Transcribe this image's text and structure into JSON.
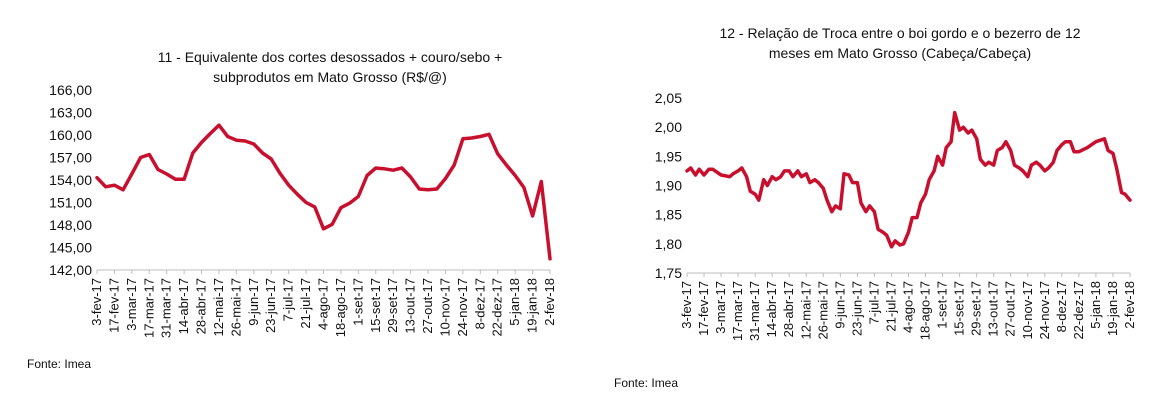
{
  "chart_data": [
    {
      "type": "line",
      "title_line1": "11 - Equivalente dos cortes desossados + couro/sebo +",
      "title_line2": "subprodutos em Mato Grosso (R$/@)",
      "y_ticks": [
        "166,00",
        "163,00",
        "160,00",
        "157,00",
        "154,00",
        "151,00",
        "148,00",
        "145,00",
        "142,00"
      ],
      "ylim": [
        142,
        166
      ],
      "x_ticks": [
        "3-fev-17",
        "17-fev-17",
        "3-mar-17",
        "17-mar-17",
        "31-mar-17",
        "14-abr-17",
        "28-abr-17",
        "12-mai-17",
        "26-mai-17",
        "9-jun-17",
        "23-jun-17",
        "7-jul-17",
        "21-jul-17",
        "4-ago-17",
        "18-ago-17",
        "1-set-17",
        "15-set-17",
        "29-set-17",
        "13-out-17",
        "27-out-17",
        "10-nov-17",
        "24-nov-17",
        "8-dez-17",
        "22-dez-17",
        "5-jan-18",
        "19-jan-18",
        "2-fev-18"
      ],
      "x_range": [
        "3-fev-17",
        "2-fev-18"
      ],
      "series": [
        {
          "color": "#c8102e",
          "points": [
            [
              "3-fev-17",
              154.3
            ],
            [
              "10-fev-17",
              153.1
            ],
            [
              "17-fev-17",
              153.3
            ],
            [
              "24-fev-17",
              152.7
            ],
            [
              "3-mar-17",
              154.8
            ],
            [
              "10-mar-17",
              157.0
            ],
            [
              "17-mar-17",
              157.4
            ],
            [
              "24-mar-17",
              155.4
            ],
            [
              "31-mar-17",
              154.8
            ],
            [
              "7-abr-17",
              154.1
            ],
            [
              "14-abr-17",
              154.1
            ],
            [
              "21-abr-17",
              157.6
            ],
            [
              "28-abr-17",
              159.0
            ],
            [
              "5-mai-17",
              160.2
            ],
            [
              "12-mai-17",
              161.3
            ],
            [
              "19-mai-17",
              159.8
            ],
            [
              "26-mai-17",
              159.3
            ],
            [
              "2-jun-17",
              159.2
            ],
            [
              "9-jun-17",
              158.8
            ],
            [
              "16-jun-17",
              157.6
            ],
            [
              "23-jun-17",
              156.8
            ],
            [
              "30-jun-17",
              154.9
            ],
            [
              "7-jul-17",
              153.3
            ],
            [
              "14-jul-17",
              152.1
            ],
            [
              "21-jul-17",
              151.0
            ],
            [
              "28-jul-17",
              150.4
            ],
            [
              "4-ago-17",
              147.5
            ],
            [
              "11-ago-17",
              148.1
            ],
            [
              "18-ago-17",
              150.3
            ],
            [
              "25-ago-17",
              150.9
            ],
            [
              "1-set-17",
              151.8
            ],
            [
              "8-set-17",
              154.6
            ],
            [
              "15-set-17",
              155.6
            ],
            [
              "22-set-17",
              155.5
            ],
            [
              "29-set-17",
              155.3
            ],
            [
              "6-out-17",
              155.6
            ],
            [
              "13-out-17",
              154.4
            ],
            [
              "20-out-17",
              152.8
            ],
            [
              "27-out-17",
              152.7
            ],
            [
              "3-nov-17",
              152.8
            ],
            [
              "10-nov-17",
              154.2
            ],
            [
              "17-nov-17",
              156.0
            ],
            [
              "24-nov-17",
              159.5
            ],
            [
              "1-dez-17",
              159.6
            ],
            [
              "8-dez-17",
              159.8
            ],
            [
              "15-dez-17",
              160.1
            ],
            [
              "22-dez-17",
              157.5
            ],
            [
              "29-dez-17",
              156.0
            ],
            [
              "5-jan-18",
              154.6
            ],
            [
              "12-jan-18",
              153.0
            ],
            [
              "19-jan-18",
              149.2
            ],
            [
              "26-jan-18",
              153.8
            ],
            [
              "2-fev-18",
              143.5
            ]
          ]
        }
      ],
      "source": "Fonte: Imea"
    },
    {
      "type": "line",
      "title_line1": "12 - Relação de Troca entre o boi gordo e o bezerro de 12",
      "title_line2": "meses em Mato Grosso (Cabeça/Cabeça)",
      "y_ticks": [
        "2,05",
        "2,00",
        "1,95",
        "1,90",
        "1,85",
        "1,80",
        "1,75"
      ],
      "ylim": [
        1.75,
        2.05
      ],
      "x_ticks": [
        "3-fev-17",
        "17-fev-17",
        "3-mar-17",
        "17-mar-17",
        "31-mar-17",
        "14-abr-17",
        "28-abr-17",
        "12-mai-17",
        "26-mai-17",
        "9-jun-17",
        "23-jun-17",
        "7-jul-17",
        "21-jul-17",
        "4-ago-17",
        "18-ago-17",
        "1-set-17",
        "15-set-17",
        "29-set-17",
        "13-out-17",
        "27-out-17",
        "10-nov-17",
        "24-nov-17",
        "8-dez-17",
        "22-dez-17",
        "5-jan-18",
        "19-jan-18",
        "2-fev-18"
      ],
      "x_range": [
        "3-fev-17",
        "2-fev-18"
      ],
      "series": [
        {
          "color": "#c8102e",
          "points": [
            [
              "3-fev-17",
              1.925
            ],
            [
              "6-fev-17",
              1.93
            ],
            [
              "10-fev-17",
              1.918
            ],
            [
              "13-fev-17",
              1.928
            ],
            [
              "17-fev-17",
              1.918
            ],
            [
              "21-fev-17",
              1.928
            ],
            [
              "24-fev-17",
              1.928
            ],
            [
              "3-mar-17",
              1.918
            ],
            [
              "10-mar-17",
              1.915
            ],
            [
              "13-mar-17",
              1.92
            ],
            [
              "17-mar-17",
              1.925
            ],
            [
              "20-mar-17",
              1.93
            ],
            [
              "24-mar-17",
              1.915
            ],
            [
              "27-mar-17",
              1.89
            ],
            [
              "31-mar-17",
              1.885
            ],
            [
              "3-abr-17",
              1.875
            ],
            [
              "7-abr-17",
              1.91
            ],
            [
              "10-abr-17",
              1.9
            ],
            [
              "14-abr-17",
              1.915
            ],
            [
              "17-abr-17",
              1.91
            ],
            [
              "21-abr-17",
              1.915
            ],
            [
              "24-abr-17",
              1.925
            ],
            [
              "28-abr-17",
              1.925
            ],
            [
              "1-mai-17",
              1.915
            ],
            [
              "5-mai-17",
              1.925
            ],
            [
              "8-mai-17",
              1.915
            ],
            [
              "12-mai-17",
              1.92
            ],
            [
              "15-mai-17",
              1.905
            ],
            [
              "19-mai-17",
              1.91
            ],
            [
              "22-mai-17",
              1.905
            ],
            [
              "26-mai-17",
              1.895
            ],
            [
              "29-mai-17",
              1.875
            ],
            [
              "2-jun-17",
              1.855
            ],
            [
              "5-jun-17",
              1.865
            ],
            [
              "9-jun-17",
              1.86
            ],
            [
              "12-jun-17",
              1.92
            ],
            [
              "16-jun-17",
              1.918
            ],
            [
              "19-jun-17",
              1.905
            ],
            [
              "23-jun-17",
              1.905
            ],
            [
              "26-jun-17",
              1.87
            ],
            [
              "30-jun-17",
              1.855
            ],
            [
              "3-jul-17",
              1.865
            ],
            [
              "7-jul-17",
              1.855
            ],
            [
              "10-jul-17",
              1.825
            ],
            [
              "14-jul-17",
              1.82
            ],
            [
              "17-jul-17",
              1.815
            ],
            [
              "21-jul-17",
              1.795
            ],
            [
              "24-jul-17",
              1.805
            ],
            [
              "28-jul-17",
              1.798
            ],
            [
              "31-jul-17",
              1.8
            ],
            [
              "4-ago-17",
              1.82
            ],
            [
              "7-ago-17",
              1.845
            ],
            [
              "11-ago-17",
              1.845
            ],
            [
              "14-ago-17",
              1.87
            ],
            [
              "18-ago-17",
              1.885
            ],
            [
              "21-ago-17",
              1.91
            ],
            [
              "25-ago-17",
              1.925
            ],
            [
              "28-ago-17",
              1.95
            ],
            [
              "1-set-17",
              1.935
            ],
            [
              "4-set-17",
              1.965
            ],
            [
              "8-set-17",
              1.975
            ],
            [
              "11-set-17",
              2.025
            ],
            [
              "15-set-17",
              1.995
            ],
            [
              "18-set-17",
              2.0
            ],
            [
              "22-set-17",
              1.99
            ],
            [
              "25-set-17",
              1.995
            ],
            [
              "29-set-17",
              1.98
            ],
            [
              "2-out-17",
              1.945
            ],
            [
              "6-out-17",
              1.935
            ],
            [
              "9-out-17",
              1.94
            ],
            [
              "13-out-17",
              1.935
            ],
            [
              "16-out-17",
              1.96
            ],
            [
              "20-out-17",
              1.965
            ],
            [
              "23-out-17",
              1.975
            ],
            [
              "27-out-17",
              1.96
            ],
            [
              "30-out-17",
              1.935
            ],
            [
              "3-nov-17",
              1.93
            ],
            [
              "6-nov-17",
              1.925
            ],
            [
              "10-nov-17",
              1.915
            ],
            [
              "13-nov-17",
              1.935
            ],
            [
              "17-nov-17",
              1.94
            ],
            [
              "20-nov-17",
              1.935
            ],
            [
              "24-nov-17",
              1.925
            ],
            [
              "27-nov-17",
              1.93
            ],
            [
              "1-dez-17",
              1.94
            ],
            [
              "4-dez-17",
              1.96
            ],
            [
              "8-dez-17",
              1.97
            ],
            [
              "11-dez-17",
              1.975
            ],
            [
              "15-dez-17",
              1.975
            ],
            [
              "18-dez-17",
              1.958
            ],
            [
              "22-dez-17",
              1.958
            ],
            [
              "29-dez-17",
              1.965
            ],
            [
              "5-jan-18",
              1.975
            ],
            [
              "12-jan-18",
              1.98
            ],
            [
              "15-jan-18",
              1.96
            ],
            [
              "19-jan-18",
              1.955
            ],
            [
              "22-jan-18",
              1.93
            ],
            [
              "26-jan-18",
              1.888
            ],
            [
              "29-jan-18",
              1.885
            ],
            [
              "2-fev-18",
              1.875
            ]
          ]
        }
      ],
      "source": "Fonte: Imea"
    }
  ]
}
